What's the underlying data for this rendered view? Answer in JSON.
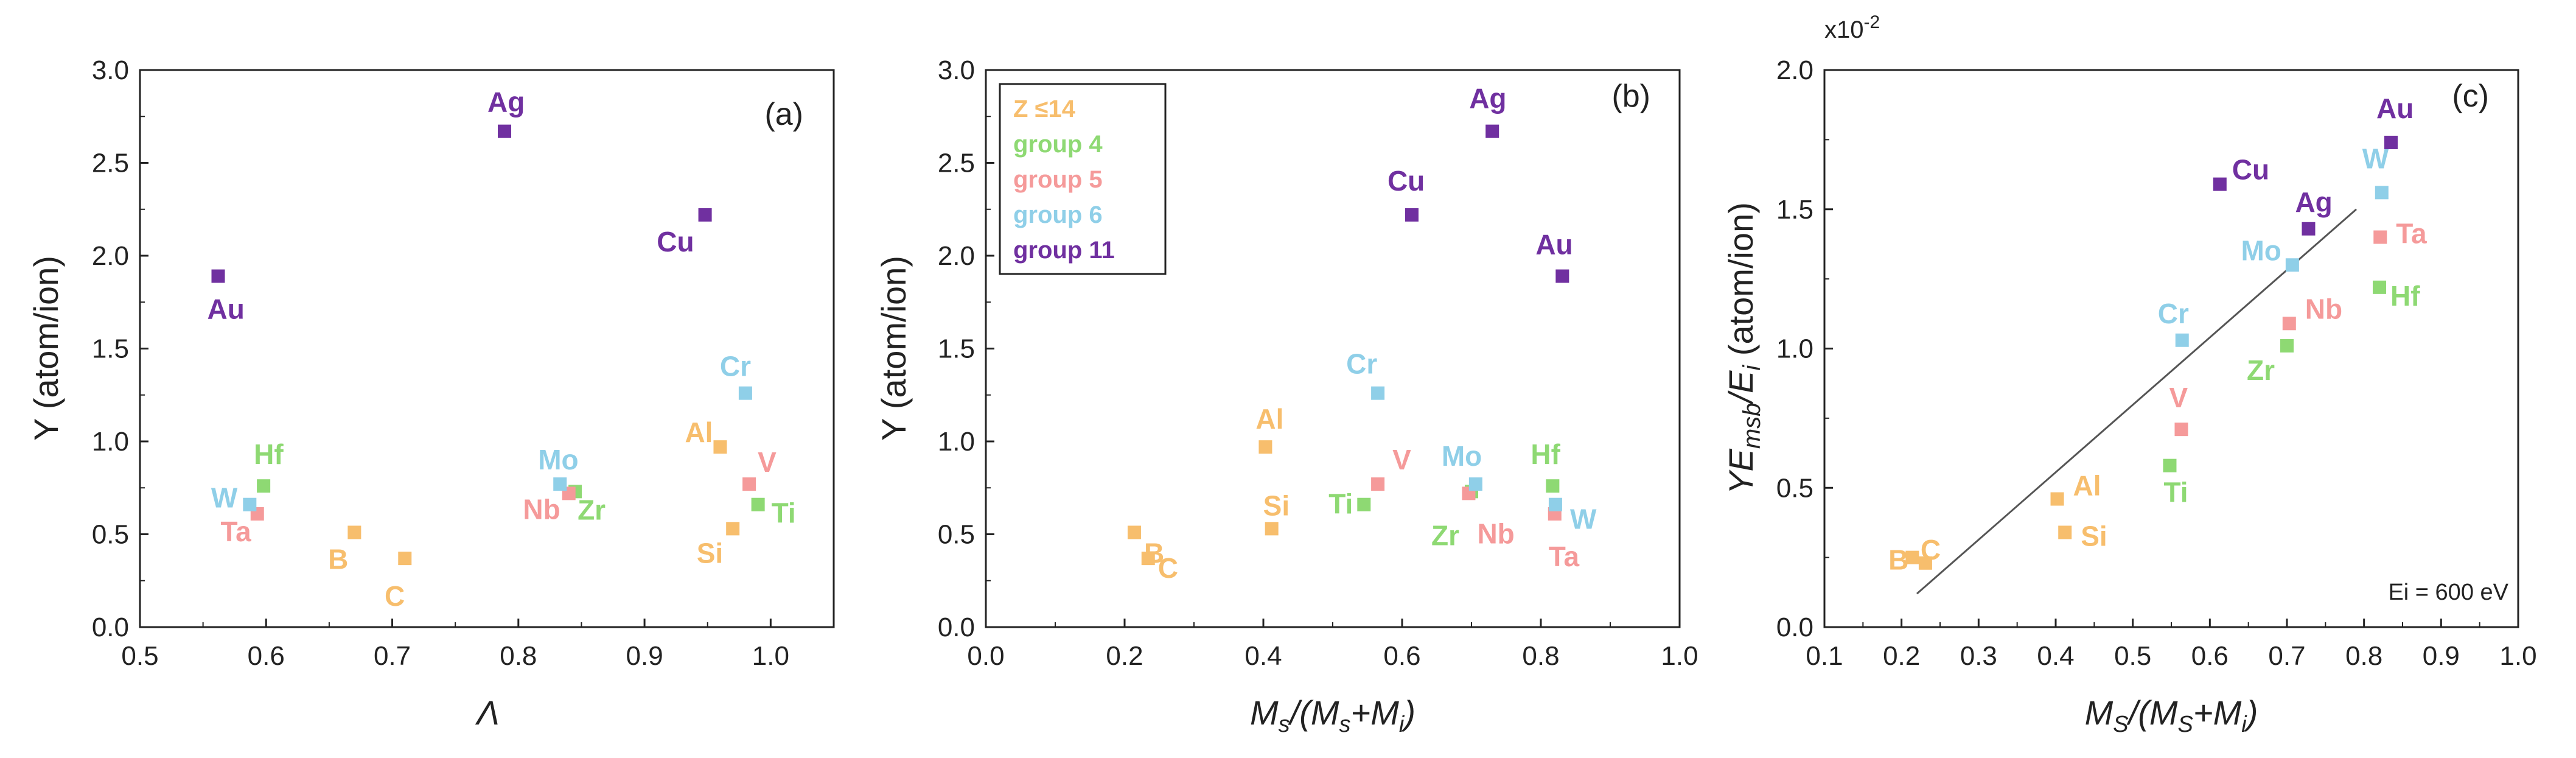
{
  "colors": {
    "Z<=14": "#F7BE6D",
    "group4": "#8ED973",
    "group5": "#F59A9A",
    "group6": "#8FCFE8",
    "group11": "#7030A0",
    "fit_line": "#555555",
    "axes": "#222222"
  },
  "chart_data": [
    {
      "type": "scatter",
      "panel_label": "(a)",
      "xlabel": "Λ",
      "ylabel": "Y (atom/ion)",
      "xlim": [
        0.5,
        1.05
      ],
      "ylim": [
        0.0,
        3.0
      ],
      "xticks": [
        0.5,
        0.6,
        0.7,
        0.8,
        0.9,
        1.0
      ],
      "xtick_labels": [
        "0.5",
        "0.6",
        "0.7",
        "0.8",
        "0.9",
        "1.0"
      ],
      "yticks": [
        0.0,
        0.5,
        1.0,
        1.5,
        2.0,
        2.5,
        3.0
      ],
      "ytick_labels": [
        "0.0",
        "0.5",
        "1.0",
        "1.5",
        "2.0",
        "2.5",
        "3.0"
      ],
      "points": [
        {
          "label": "B",
          "group": "Z<=14",
          "x": 0.67,
          "y": 0.51
        },
        {
          "label": "C",
          "group": "Z<=14",
          "x": 0.71,
          "y": 0.37
        },
        {
          "label": "Al",
          "group": "Z<=14",
          "x": 0.96,
          "y": 0.97
        },
        {
          "label": "Si",
          "group": "Z<=14",
          "x": 0.97,
          "y": 0.53
        },
        {
          "label": "Ti",
          "group": "group4",
          "x": 0.99,
          "y": 0.66
        },
        {
          "label": "Zr",
          "group": "group4",
          "x": 0.845,
          "y": 0.73
        },
        {
          "label": "Hf",
          "group": "group4",
          "x": 0.598,
          "y": 0.76
        },
        {
          "label": "V",
          "group": "group5",
          "x": 0.983,
          "y": 0.77
        },
        {
          "label": "Nb",
          "group": "group5",
          "x": 0.84,
          "y": 0.72
        },
        {
          "label": "Ta",
          "group": "group5",
          "x": 0.593,
          "y": 0.61
        },
        {
          "label": "Cr",
          "group": "group6",
          "x": 0.98,
          "y": 1.26
        },
        {
          "label": "Mo",
          "group": "group6",
          "x": 0.833,
          "y": 0.77
        },
        {
          "label": "W",
          "group": "group6",
          "x": 0.587,
          "y": 0.66
        },
        {
          "label": "Cu",
          "group": "group11",
          "x": 0.948,
          "y": 2.22
        },
        {
          "label": "Ag",
          "group": "group11",
          "x": 0.789,
          "y": 2.67
        },
        {
          "label": "Au",
          "group": "group11",
          "x": 0.562,
          "y": 1.89
        }
      ]
    },
    {
      "type": "scatter",
      "panel_label": "(b)",
      "xlabel": "Ms/(Ms+Mi)",
      "ylabel": "Y (atom/ion)",
      "xlim": [
        0.0,
        1.0
      ],
      "ylim": [
        0.0,
        3.0
      ],
      "xticks": [
        0.0,
        0.2,
        0.4,
        0.6,
        0.8,
        1.0
      ],
      "xtick_labels": [
        "0.0",
        "0.2",
        "0.4",
        "0.6",
        "0.8",
        "1.0"
      ],
      "yticks": [
        0.0,
        0.5,
        1.0,
        1.5,
        2.0,
        2.5,
        3.0
      ],
      "ytick_labels": [
        "0.0",
        "0.5",
        "1.0",
        "1.5",
        "2.0",
        "2.5",
        "3.0"
      ],
      "legend": [
        {
          "group": "Z<=14",
          "label": "Z ≤14"
        },
        {
          "group": "group4",
          "label": "group 4"
        },
        {
          "group": "group5",
          "label": "group 5"
        },
        {
          "group": "group6",
          "label": "group 6"
        },
        {
          "group": "group11",
          "label": "group 11"
        }
      ],
      "legend_position": "top-left",
      "points": [
        {
          "label": "B",
          "group": "Z<=14",
          "x": 0.214,
          "y": 0.51
        },
        {
          "label": "C",
          "group": "Z<=14",
          "x": 0.234,
          "y": 0.37
        },
        {
          "label": "Al",
          "group": "Z<=14",
          "x": 0.403,
          "y": 0.97
        },
        {
          "label": "Si",
          "group": "Z<=14",
          "x": 0.412,
          "y": 0.53
        },
        {
          "label": "Ti",
          "group": "group4",
          "x": 0.545,
          "y": 0.66
        },
        {
          "label": "Zr",
          "group": "group4",
          "x": 0.7,
          "y": 0.73
        },
        {
          "label": "Hf",
          "group": "group4",
          "x": 0.817,
          "y": 0.76
        },
        {
          "label": "V",
          "group": "group5",
          "x": 0.565,
          "y": 0.77
        },
        {
          "label": "Nb",
          "group": "group5",
          "x": 0.696,
          "y": 0.72
        },
        {
          "label": "Ta",
          "group": "group5",
          "x": 0.82,
          "y": 0.61
        },
        {
          "label": "Cr",
          "group": "group6",
          "x": 0.565,
          "y": 1.26
        },
        {
          "label": "Mo",
          "group": "group6",
          "x": 0.706,
          "y": 0.77
        },
        {
          "label": "W",
          "group": "group6",
          "x": 0.821,
          "y": 0.66
        },
        {
          "label": "Cu",
          "group": "group11",
          "x": 0.614,
          "y": 2.22
        },
        {
          "label": "Ag",
          "group": "group11",
          "x": 0.73,
          "y": 2.67
        },
        {
          "label": "Au",
          "group": "group11",
          "x": 0.831,
          "y": 1.89
        }
      ]
    },
    {
      "type": "scatter",
      "panel_label": "(c)",
      "xlabel": "MS/(MS+Mi)",
      "ylabel": "YEmsb/Ei (atom/ion)",
      "exponent_label": "x10",
      "exponent_power": "-2",
      "annotation": "Ei = 600 eV",
      "xlim": [
        0.1,
        1.0
      ],
      "ylim": [
        0.0,
        2.0
      ],
      "xticks": [
        0.1,
        0.2,
        0.3,
        0.4,
        0.5,
        0.6,
        0.7,
        0.8,
        0.9,
        1.0
      ],
      "xtick_labels": [
        "0.1",
        "0.2",
        "0.3",
        "0.4",
        "0.5",
        "0.6",
        "0.7",
        "0.8",
        "0.9",
        "1.0"
      ],
      "yticks": [
        0.0,
        0.5,
        1.0,
        1.5,
        2.0
      ],
      "ytick_labels": [
        "0.0",
        "0.5",
        "1.0",
        "1.5",
        "2.0"
      ],
      "fit_line": {
        "x": [
          0.22,
          0.79
        ],
        "y": [
          0.12,
          1.5
        ]
      },
      "points": [
        {
          "label": "B",
          "group": "Z<=14",
          "x": 0.214,
          "y": 0.25
        },
        {
          "label": "C",
          "group": "Z<=14",
          "x": 0.231,
          "y": 0.23
        },
        {
          "label": "Al",
          "group": "Z<=14",
          "x": 0.402,
          "y": 0.46
        },
        {
          "label": "Si",
          "group": "Z<=14",
          "x": 0.412,
          "y": 0.34
        },
        {
          "label": "Ti",
          "group": "group4",
          "x": 0.548,
          "y": 0.58
        },
        {
          "label": "Zr",
          "group": "group4",
          "x": 0.7,
          "y": 1.01
        },
        {
          "label": "Hf",
          "group": "group4",
          "x": 0.82,
          "y": 1.22
        },
        {
          "label": "V",
          "group": "group5",
          "x": 0.563,
          "y": 0.71
        },
        {
          "label": "Nb",
          "group": "group5",
          "x": 0.703,
          "y": 1.09
        },
        {
          "label": "Ta",
          "group": "group5",
          "x": 0.821,
          "y": 1.4
        },
        {
          "label": "Cr",
          "group": "group6",
          "x": 0.564,
          "y": 1.03
        },
        {
          "label": "Mo",
          "group": "group6",
          "x": 0.707,
          "y": 1.3
        },
        {
          "label": "W",
          "group": "group6",
          "x": 0.823,
          "y": 1.56
        },
        {
          "label": "Cu",
          "group": "group11",
          "x": 0.613,
          "y": 1.59
        },
        {
          "label": "Ag",
          "group": "group11",
          "x": 0.728,
          "y": 1.43
        },
        {
          "label": "Au",
          "group": "group11",
          "x": 0.835,
          "y": 1.74
        }
      ]
    }
  ]
}
